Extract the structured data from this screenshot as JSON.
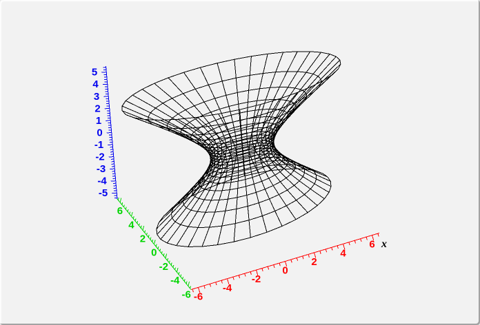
{
  "frame": {
    "background": "#f2f2f2",
    "border_light": "#fcfcfc",
    "border_dark": "#a3a3a3"
  },
  "chart_data": {
    "type": "surface-wireframe",
    "title": "",
    "legend": "none",
    "grid": "mesh-only",
    "surface": {
      "name": "one-sheet-hyperboloid",
      "equation": "x^2/a^2 + y^2/b^2 - z^2/c^2 = 1",
      "mesh_color": "#000000",
      "mesh_stroke_width": 1,
      "n_theta": 36,
      "n_u": 20,
      "z_max": 5,
      "cluster": 2.3,
      "r0_sq": 4.58,
      "r_coef_sq": 1.52,
      "y_scale": 0.53
    },
    "projection": {
      "O": [
        351.75,
        217.2
      ],
      "ex": [
        21.0,
        -6.31
      ],
      "ey": [
        -8.23,
        -10.12
      ],
      "ez": [
        -1.5,
        -17.55
      ],
      "f": [
        0.282,
        0.724,
        -0.629
      ],
      "D": 29
    },
    "axes": {
      "x": {
        "title": "x",
        "title_color": "#000000",
        "color": "#ff0000",
        "p0": [
          -6.5,
          -6.5,
          -5.5
        ],
        "p1": [
          6.5,
          -6.5,
          -5.5
        ],
        "vmin": -6.5,
        "vmax": 6.5,
        "tick_min": -6.4,
        "tick_max": 6.4,
        "minor_step": 0.4,
        "major_step": 2,
        "tick_dir": [
          0.29,
          0.96
        ],
        "major_len": 8,
        "minor_len": 4.5,
        "label_values": [
          -6,
          -4,
          -2,
          0,
          2,
          4,
          6
        ],
        "labels": [
          "-6",
          "-4",
          "-2",
          "0",
          "2",
          "4",
          "6"
        ],
        "label_offset": [
          0,
          18
        ],
        "label_anchor": "middle",
        "label_font_size": 15
      },
      "y": {
        "title": "",
        "color": "#00d500",
        "p0": [
          -6.5,
          6.5,
          -5.5
        ],
        "p1": [
          -6.5,
          -6.5,
          -5.5
        ],
        "vmin": 6.5,
        "vmax": -6.5,
        "tick_min": -6.33,
        "tick_max": 6.33,
        "minor_step": 0.3333,
        "major_step": 2,
        "tick_dir": [
          0.25,
          -0.97
        ],
        "major_len": 6.5,
        "minor_len": 3.5,
        "label_values": [
          6,
          4,
          2,
          0,
          -2,
          -4,
          -6
        ],
        "labels": [
          "6",
          "4",
          "2",
          "0",
          "-2",
          "-4",
          "-6"
        ],
        "label_offset": [
          4,
          17
        ],
        "label_anchor": "end",
        "label_font_size": 15
      },
      "z": {
        "title": "",
        "color": "#0000ee",
        "p0": [
          -6.5,
          6.5,
          5.5
        ],
        "p1": [
          -6.5,
          6.5,
          -5.5
        ],
        "vmin": 5.5,
        "vmax": -5.5,
        "tick_min": -5.4,
        "tick_max": 5.4,
        "minor_step": 0.2,
        "major_step": 1,
        "tick_dir": [
          -1,
          0.08
        ],
        "major_len": 7,
        "minor_len": 4,
        "label_values": [
          5,
          4,
          3,
          2,
          1,
          0,
          -1,
          -2,
          -3,
          -4,
          -5
        ],
        "labels": [
          "5",
          "4",
          "3",
          "2",
          "1",
          "0",
          "-1",
          "-2",
          "-3",
          "-4",
          "-5"
        ],
        "label_offset": [
          -13,
          5
        ],
        "label_anchor": "end",
        "label_font_size": 15
      }
    }
  }
}
